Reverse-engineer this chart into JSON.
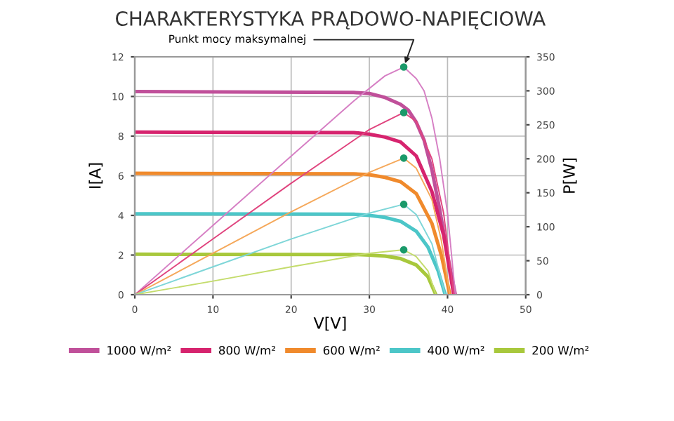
{
  "chart_data": {
    "type": "line",
    "title": "CHARAKTERYSTYKA PRĄDOWO-NAPIĘCIOWA",
    "xlabel": "V[V]",
    "ylabel": "I[A]",
    "y2label": "P[W]",
    "xlim": [
      0,
      50
    ],
    "xticks": [
      0,
      10,
      20,
      30,
      40,
      50
    ],
    "ylim": [
      0,
      12
    ],
    "yticks": [
      0,
      2,
      4,
      6,
      8,
      10,
      12
    ],
    "y2lim": [
      0,
      350
    ],
    "y2ticks": [
      0,
      50,
      100,
      150,
      200,
      250,
      300,
      350
    ],
    "grid": true,
    "legend": "bottom",
    "marker": "none",
    "annotations": [
      "Punkt mocy maksymalnej"
    ],
    "series": [
      {
        "name": "1000 W/m²",
        "color": "#c0509a",
        "x": [
          0,
          28,
          30,
          32,
          34,
          35,
          36,
          37,
          38,
          39,
          40,
          41
        ],
        "values": [
          10.25,
          10.2,
          10.15,
          9.95,
          9.6,
          9.3,
          8.7,
          7.8,
          6.3,
          4.3,
          2.0,
          0
        ]
      },
      {
        "name": "800 W/m²",
        "color": "#d6246e",
        "x": [
          0,
          28,
          30,
          32,
          34,
          36,
          38,
          39.5,
          40.8
        ],
        "values": [
          8.2,
          8.18,
          8.1,
          7.95,
          7.7,
          7.0,
          5.2,
          3.0,
          0
        ]
      },
      {
        "name": "600 W/m²",
        "color": "#f08a2c",
        "x": [
          0,
          28,
          30,
          32,
          34,
          36,
          38,
          39.2,
          40.3
        ],
        "values": [
          6.12,
          6.1,
          6.05,
          5.92,
          5.7,
          5.1,
          3.6,
          2.0,
          0
        ]
      },
      {
        "name": "400 W/m²",
        "color": "#4cc6c8",
        "x": [
          0,
          28,
          30,
          32,
          34,
          36,
          37.5,
          38.8,
          39.7
        ],
        "values": [
          4.08,
          4.06,
          4.0,
          3.9,
          3.7,
          3.2,
          2.4,
          1.2,
          0
        ]
      },
      {
        "name": "200 W/m²",
        "color": "#a8c83c",
        "x": [
          0,
          28,
          30,
          32,
          34,
          36,
          37.5,
          38.5
        ],
        "values": [
          2.04,
          2.03,
          2.0,
          1.95,
          1.82,
          1.5,
          0.9,
          0
        ]
      },
      {
        "color": "#d67fc4",
        "axis": "y2",
        "x": [
          0,
          10,
          20,
          28,
          32,
          34.4,
          36,
          37,
          38,
          39,
          40,
          41
        ],
        "values": [
          0,
          102,
          204,
          285,
          322,
          335,
          318,
          300,
          260,
          200,
          120,
          0
        ]
      },
      {
        "color": "#e0457f",
        "axis": "y2",
        "x": [
          0,
          10,
          20,
          30,
          34.4,
          36,
          38,
          39.5,
          40.8
        ],
        "values": [
          0,
          82,
          164,
          243,
          268,
          255,
          200,
          120,
          0
        ]
      },
      {
        "color": "#f5a85a",
        "axis": "y2",
        "x": [
          0,
          10,
          20,
          30,
          34.4,
          36,
          38,
          39.2,
          40.3
        ],
        "values": [
          0,
          61,
          122,
          180,
          201,
          186,
          140,
          80,
          0
        ]
      },
      {
        "color": "#7ed6d8",
        "axis": "y2",
        "x": [
          0,
          10,
          20,
          30,
          34.4,
          36,
          38,
          39.7
        ],
        "values": [
          0,
          41,
          82,
          120,
          133,
          118,
          75,
          0
        ]
      },
      {
        "color": "#c4dc6c",
        "axis": "y2",
        "x": [
          0,
          10,
          20,
          30,
          34.4,
          36,
          37.5,
          38.5
        ],
        "values": [
          0,
          20,
          41,
          61,
          66,
          56,
          35,
          0
        ]
      },
      {
        "type": "scatter",
        "marker": "circle",
        "color": "#1a9a6a",
        "axis": "y2",
        "x": [
          34.4,
          34.4,
          34.4,
          34.4,
          34.4
        ],
        "values": [
          335,
          268,
          201,
          133,
          66
        ]
      }
    ]
  }
}
